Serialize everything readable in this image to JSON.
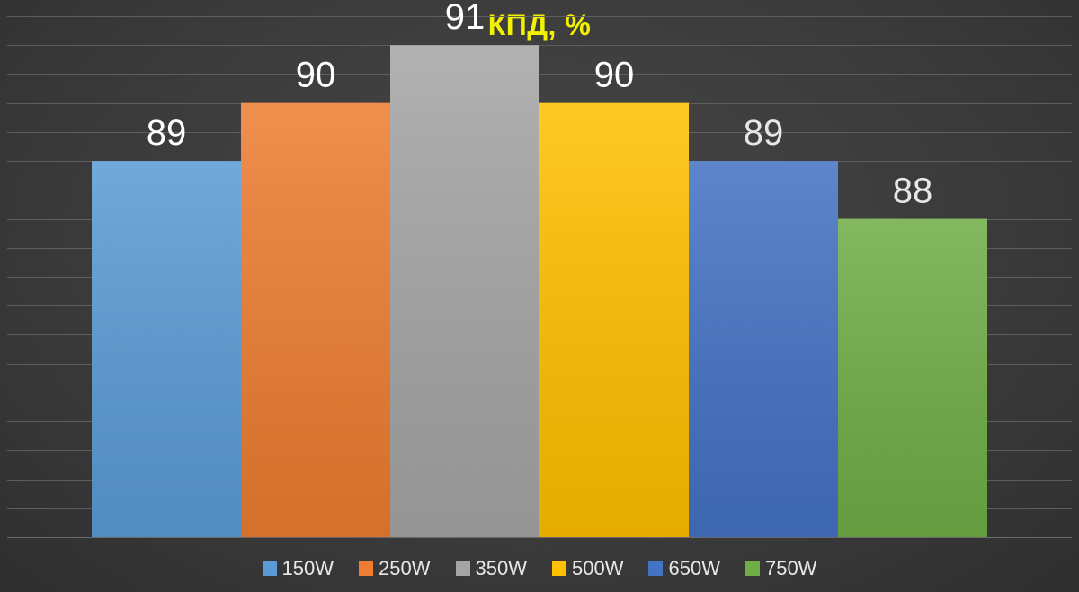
{
  "chart_data": {
    "type": "bar",
    "title": "КПД, %",
    "xlabel": "",
    "ylabel": "",
    "ylim": [
      82.5,
      91.5
    ],
    "grid": true,
    "legend_position": "bottom",
    "series": [
      {
        "name": "150W",
        "value": 89,
        "color": "#5b9bd5"
      },
      {
        "name": "250W",
        "value": 90,
        "color": "#ed7d31"
      },
      {
        "name": "350W",
        "value": 91,
        "color": "#a5a5a5"
      },
      {
        "name": "500W",
        "value": 90,
        "color": "#ffc000"
      },
      {
        "name": "650W",
        "value": 89,
        "color": "#4472c4"
      },
      {
        "name": "750W",
        "value": 88,
        "color": "#70ad47"
      }
    ]
  }
}
